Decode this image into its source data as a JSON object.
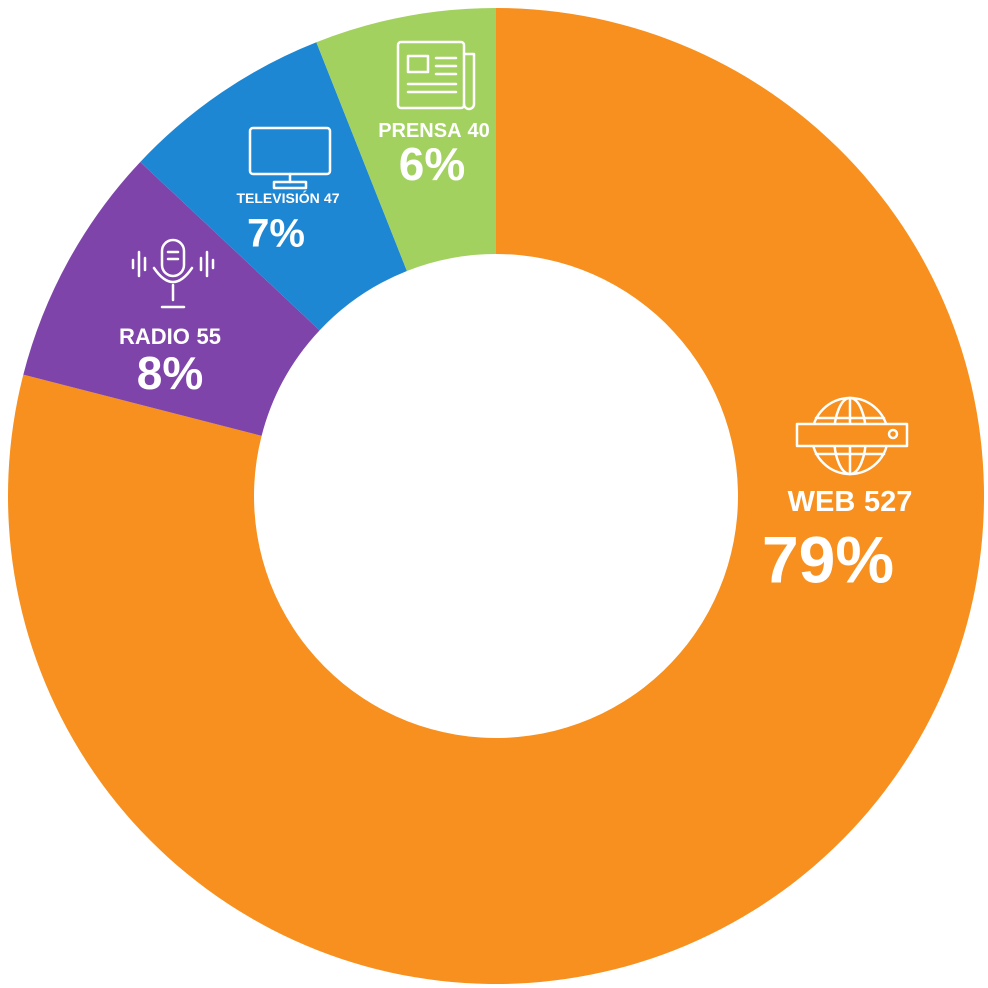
{
  "chart_data": {
    "type": "donut",
    "categories": [
      "WEB",
      "RADIO",
      "TELEVISIÓN",
      "PRENSA"
    ],
    "counts": [
      527,
      55,
      47,
      40
    ],
    "values": [
      79,
      8,
      7,
      6
    ],
    "value_labels": [
      "79%",
      "8%",
      "7%",
      "6%"
    ],
    "colors": [
      "#F7901E",
      "#7E44AA",
      "#1E87D4",
      "#A2D160"
    ]
  }
}
